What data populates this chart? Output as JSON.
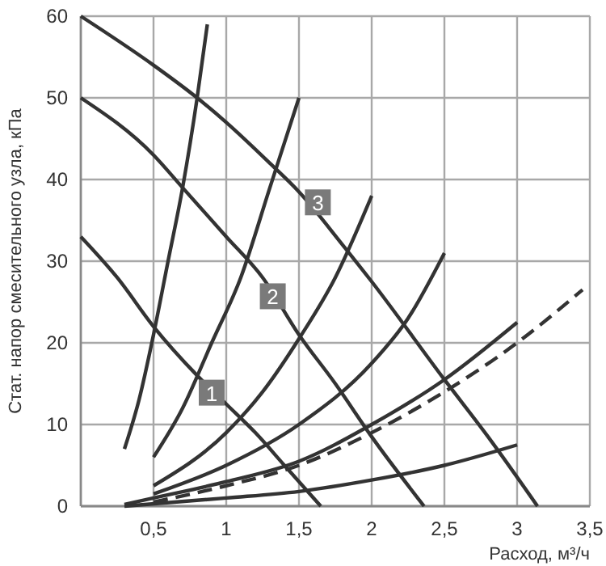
{
  "chart_data": {
    "type": "line",
    "xlabel": "Расход, м³/ч",
    "ylabel": "Стат. напор  смесительного узла, кПа",
    "xlim": [
      0,
      3.5
    ],
    "ylim": [
      0,
      60
    ],
    "xticks": [
      {
        "value": 0.5,
        "label": "0,5"
      },
      1,
      {
        "value": 1.5,
        "label": "1,5"
      },
      2,
      {
        "value": 2.5,
        "label": "2,5"
      },
      3,
      {
        "value": 3.5,
        "label": "3,5"
      }
    ],
    "yticks": [
      0,
      10,
      20,
      30,
      40,
      50,
      60
    ],
    "grid": true,
    "marker": "none",
    "series": [
      {
        "color": "#333333",
        "x": [
          0,
          0.5,
          0.8,
          1,
          1.3,
          1.5,
          1.8,
          2,
          2.5,
          2.8,
          3.14
        ],
        "values": [
          60,
          54,
          50,
          47,
          42,
          38.5,
          32,
          27.5,
          15.5,
          8.5,
          0
        ]
      },
      {
        "color": "#333333",
        "x": [
          0,
          0.5,
          0.7,
          1,
          1.25,
          1.5,
          1.75,
          2,
          2.36
        ],
        "values": [
          50,
          43,
          39,
          33,
          28,
          21,
          15,
          8.5,
          0
        ]
      },
      {
        "color": "#333333",
        "x": [
          0,
          0.25,
          0.5,
          0.8,
          1,
          1.2,
          1.4,
          1.65
        ],
        "values": [
          33,
          28,
          22,
          16,
          12.5,
          9,
          5,
          0
        ]
      },
      {
        "color": "#333333",
        "x": [
          0.3,
          0.4,
          0.5,
          0.6,
          0.7,
          0.8,
          0.87
        ],
        "values": [
          7,
          13,
          21,
          30,
          39,
          50,
          59
        ]
      },
      {
        "color": "#333333",
        "x": [
          0.5,
          0.7,
          0.9,
          1.1,
          1.3,
          1.5
        ],
        "values": [
          6,
          12,
          20,
          28,
          39,
          50
        ]
      },
      {
        "color": "#333333",
        "x": [
          0.5,
          1,
          1.25,
          1.5,
          1.75,
          2
        ],
        "values": [
          2.5,
          9,
          14,
          20.5,
          28,
          38
        ]
      },
      {
        "color": "#333333",
        "x": [
          0.5,
          1,
          1.5,
          2,
          2.25,
          2.5
        ],
        "values": [
          1.5,
          5,
          10,
          17.5,
          23,
          31
        ]
      },
      {
        "color": "#333333",
        "x": [
          0.3,
          0.5,
          1,
          1.5,
          2,
          2.5,
          3
        ],
        "values": [
          0.2,
          1,
          3,
          5.5,
          10,
          15.5,
          22.5
        ]
      },
      {
        "color": "#333333",
        "line_style": "dashed",
        "x": [
          0.5,
          1,
          1.5,
          2,
          2.5,
          3,
          3.45
        ],
        "values": [
          0.5,
          2.5,
          5,
          9,
          14,
          20,
          26.5
        ]
      },
      {
        "color": "#333333",
        "x": [
          0.3,
          1,
          1.5,
          2,
          2.5,
          3
        ],
        "values": [
          0,
          1,
          1.8,
          3.2,
          5,
          7.5
        ]
      }
    ],
    "annotations": [
      {
        "text": "1",
        "x": 0.9,
        "y": 13.9
      },
      {
        "text": "2",
        "x": 1.32,
        "y": 25.7
      },
      {
        "text": "3",
        "x": 1.63,
        "y": 37.2
      }
    ]
  }
}
